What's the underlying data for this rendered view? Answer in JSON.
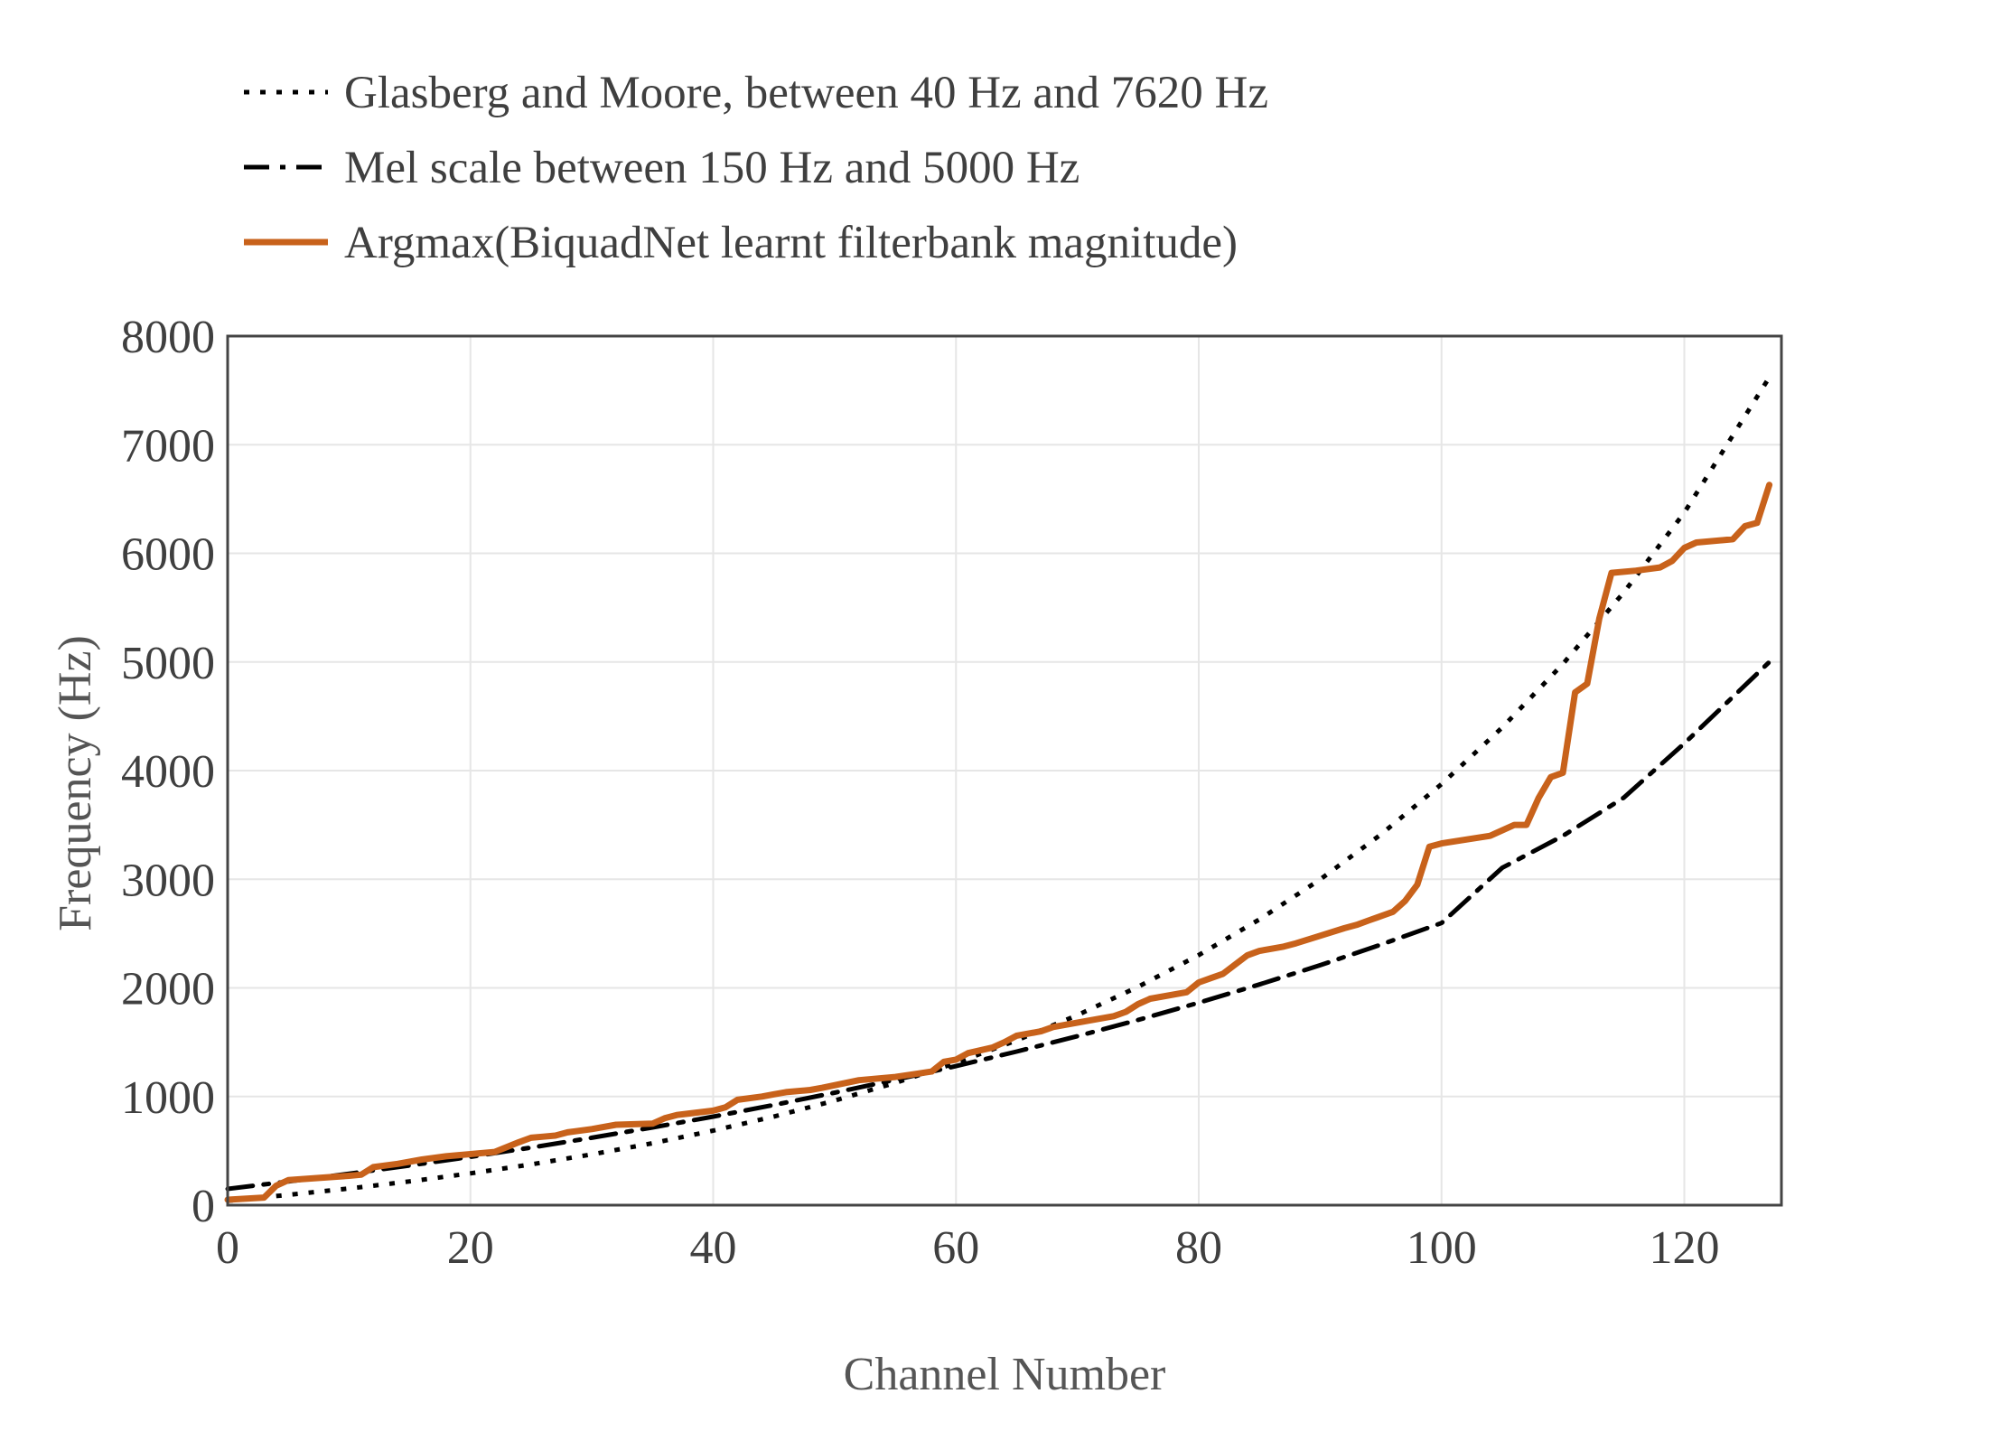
{
  "chart_data": {
    "type": "line",
    "title": "",
    "xlabel": "Channel Number",
    "ylabel": "Frequency (Hz)",
    "xlim": [
      0,
      128
    ],
    "ylim": [
      0,
      8000
    ],
    "x_ticks": [
      0,
      20,
      40,
      60,
      80,
      100,
      120
    ],
    "x_tick_labels": [
      "0",
      "20",
      "40",
      "60",
      "80",
      "100",
      "120"
    ],
    "y_ticks": [
      0,
      1000,
      2000,
      3000,
      4000,
      5000,
      6000,
      7000,
      8000
    ],
    "y_tick_labels": [
      "0",
      "1000",
      "2000",
      "3000",
      "4000",
      "5000",
      "6000",
      "7000",
      "8000"
    ],
    "grid": true,
    "legend_position": "top-left, above plot",
    "series": [
      {
        "name": "Glasberg and Moore, between 40 Hz and 7620 Hz",
        "style": "dotted",
        "color": "#000000",
        "x": [
          0,
          5,
          10,
          15,
          20,
          25,
          30,
          35,
          40,
          45,
          50,
          55,
          60,
          65,
          70,
          75,
          80,
          85,
          90,
          95,
          100,
          105,
          110,
          115,
          120,
          127
        ],
        "values": [
          40,
          95,
          153,
          219,
          293,
          375,
          467,
          570,
          686,
          816,
          962,
          1126,
          1310,
          1517,
          1749,
          2010,
          2302,
          2630,
          2998,
          3412,
          3876,
          4397,
          4982,
          5638,
          6375,
          7620
        ]
      },
      {
        "name": "Mel scale between 150 Hz and 5000 Hz",
        "style": "dash-dot",
        "color": "#000000",
        "x": [
          0,
          5,
          10,
          15,
          20,
          25,
          30,
          35,
          40,
          45,
          50,
          55,
          60,
          65,
          70,
          75,
          80,
          85,
          90,
          95,
          100,
          105,
          110,
          115,
          120,
          127
        ],
        "values": [
          150,
          218,
          289,
          365,
          445,
          530,
          620,
          715,
          815,
          922,
          1035,
          1154,
          1280,
          1414,
          1555,
          1705,
          1864,
          2032,
          2209,
          2398,
          2597,
          3105,
          3400,
          3750,
          4250,
          5000
        ]
      },
      {
        "name": "Argmax(BiquadNet learnt filterbank magnitude)",
        "style": "solid",
        "color": "#c8621b",
        "x": [
          0,
          3,
          4,
          5,
          10,
          11,
          12,
          14,
          16,
          18,
          20,
          22,
          24,
          25,
          26,
          27,
          28,
          30,
          32,
          35,
          36,
          37,
          40,
          41,
          42,
          44,
          45,
          46,
          48,
          49,
          52,
          55,
          58,
          59,
          60,
          61,
          63,
          64,
          65,
          67,
          68,
          71,
          72,
          73,
          74,
          75,
          76,
          79,
          80,
          81,
          82,
          84,
          85,
          87,
          88,
          90,
          92,
          93,
          94,
          96,
          97,
          98,
          99,
          100,
          104,
          106,
          107,
          108,
          109,
          110,
          111,
          112,
          113,
          114,
          116,
          118,
          119,
          120,
          121,
          124,
          125,
          126,
          127
        ],
        "values": [
          50,
          70,
          180,
          230,
          270,
          280,
          350,
          380,
          420,
          450,
          470,
          490,
          580,
          620,
          630,
          640,
          670,
          700,
          740,
          750,
          800,
          830,
          870,
          900,
          970,
          1000,
          1020,
          1040,
          1060,
          1080,
          1150,
          1180,
          1230,
          1320,
          1340,
          1400,
          1450,
          1500,
          1560,
          1600,
          1640,
          1700,
          1720,
          1740,
          1780,
          1850,
          1900,
          1960,
          2050,
          2090,
          2130,
          2300,
          2340,
          2380,
          2410,
          2480,
          2550,
          2580,
          2620,
          2700,
          2800,
          2950,
          3300,
          3330,
          3400,
          3500,
          3500,
          3750,
          3940,
          3980,
          4720,
          4800,
          5400,
          5820,
          5840,
          5870,
          5930,
          6050,
          6100,
          6130,
          6250,
          6280,
          6630
        ]
      }
    ]
  }
}
